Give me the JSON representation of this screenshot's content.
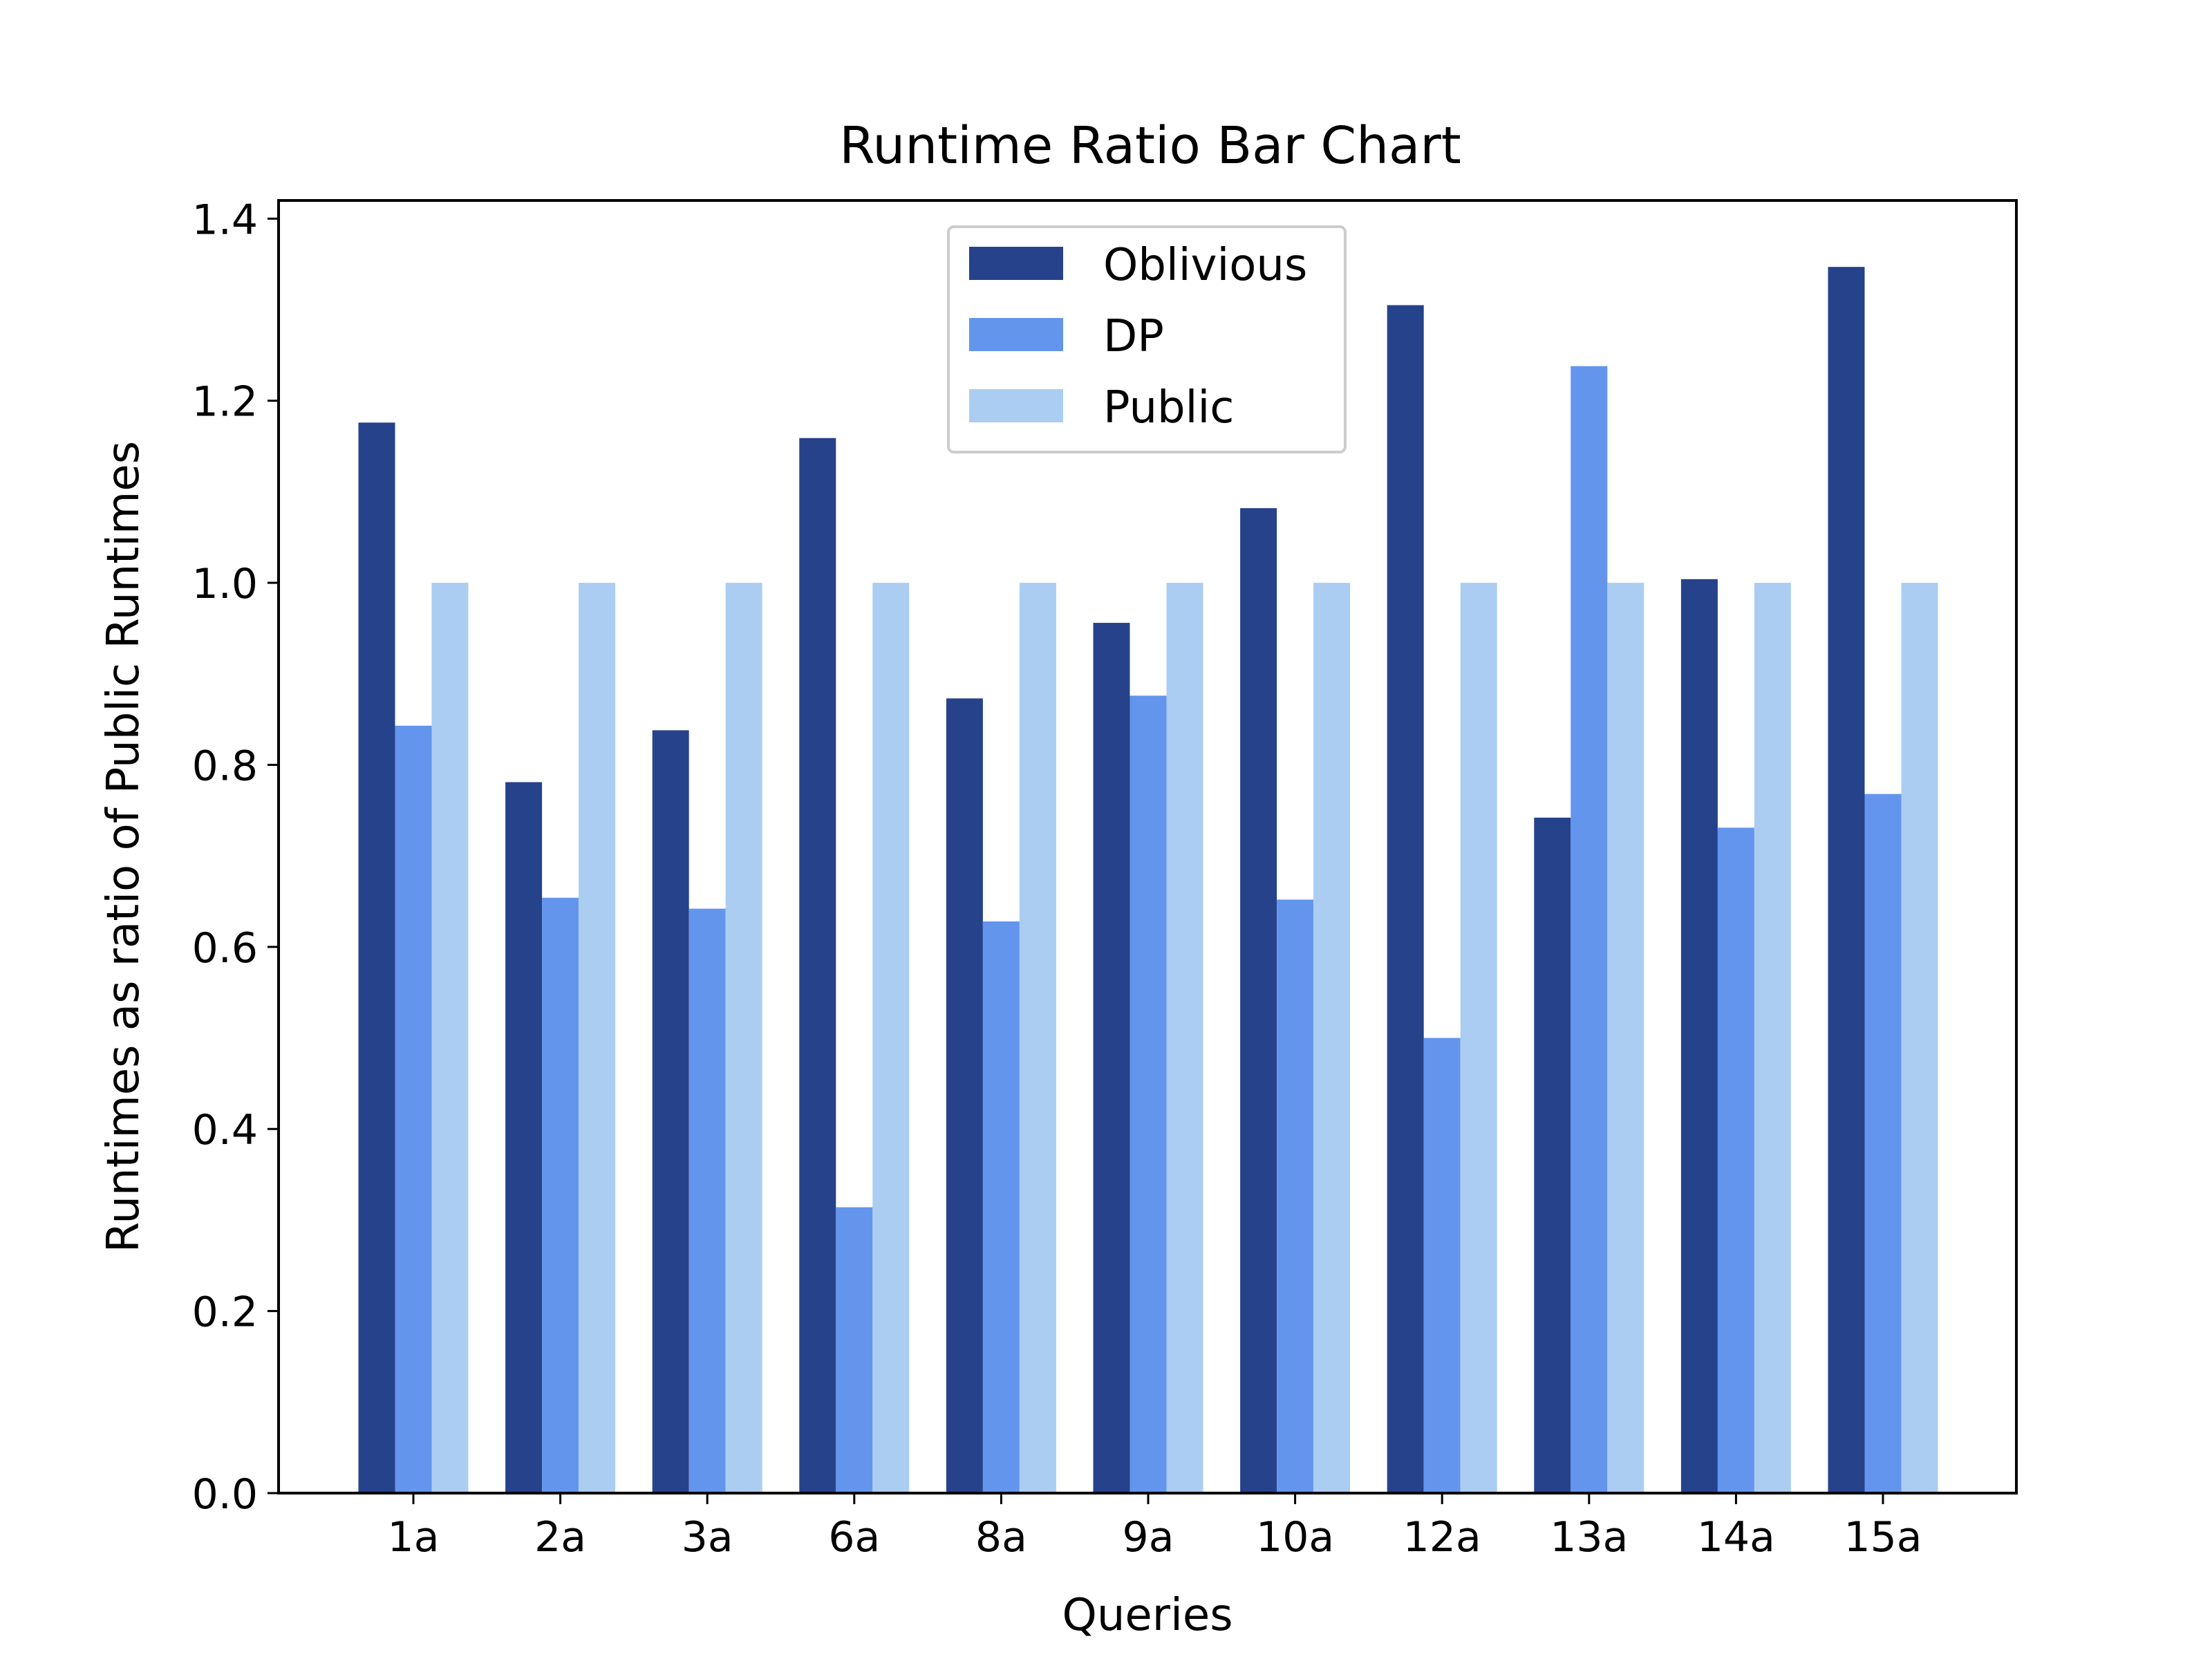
{
  "chart_data": {
    "type": "bar",
    "title": "Runtime Ratio Bar Chart",
    "xlabel": "Queries",
    "ylabel": "Runtimes as ratio of Public Runtimes",
    "ylim": [
      0,
      1.42
    ],
    "yticks": [
      0.0,
      0.2,
      0.4,
      0.6,
      0.8,
      1.0,
      1.2,
      1.4
    ],
    "ytick_labels": [
      "0.0",
      "0.2",
      "0.4",
      "0.6",
      "0.8",
      "1.0",
      "1.2",
      "1.4"
    ],
    "grid": false,
    "legend_position": "top-center",
    "categories": [
      "1a",
      "2a",
      "3a",
      "6a",
      "8a",
      "9a",
      "10a",
      "12a",
      "13a",
      "14a",
      "15a"
    ],
    "series": [
      {
        "name": "Oblivious",
        "color": "#26428b",
        "values": [
          1.176,
          0.781,
          0.838,
          1.159,
          0.873,
          0.956,
          1.082,
          1.305,
          0.742,
          1.004,
          1.347
        ]
      },
      {
        "name": "DP",
        "color": "#6495ed",
        "values": [
          0.843,
          0.654,
          0.642,
          0.314,
          0.628,
          0.876,
          0.652,
          0.5,
          1.238,
          0.731,
          0.768
        ]
      },
      {
        "name": "Public",
        "color": "#abcdf1",
        "values": [
          1.0,
          1.0,
          1.0,
          1.0,
          1.0,
          1.0,
          1.0,
          1.0,
          1.0,
          1.0,
          1.0
        ]
      }
    ]
  }
}
